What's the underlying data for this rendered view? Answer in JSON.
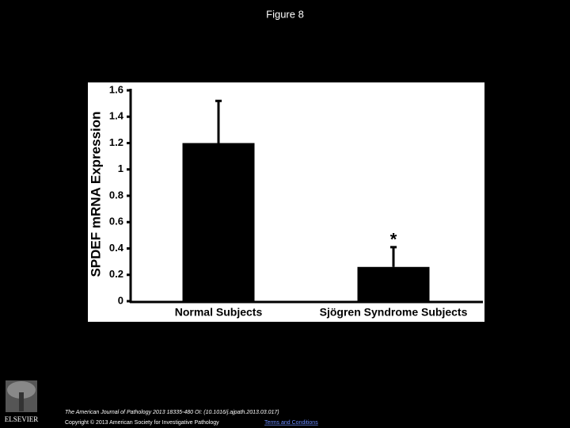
{
  "header": {
    "title": "Figure 8"
  },
  "chart_data": {
    "type": "bar",
    "y_label": "SPDEF mRNA Expression",
    "categories": [
      "Normal Subjects",
      "Sjögren Syndrome Subjects"
    ],
    "values": [
      1.2,
      0.26
    ],
    "errors": [
      0.32,
      0.15
    ],
    "color": "#000000",
    "annotations": [
      {
        "text": "*",
        "category": 1
      }
    ],
    "ylim": [
      0,
      1.6
    ],
    "yticks": [
      0,
      0.2,
      0.4,
      0.6,
      0.8,
      1,
      1.2,
      1.4,
      1.6
    ],
    "grid": false
  },
  "footer": {
    "logo": "ELSEVIER",
    "citation": "The American Journal of Pathology 2013 18335-480 OI: (10.1016/j.ajpath.2013.03.017)",
    "copyright": "Copyright © 2013 American Society for Investigative Pathology",
    "link": "Terms and Conditions"
  }
}
